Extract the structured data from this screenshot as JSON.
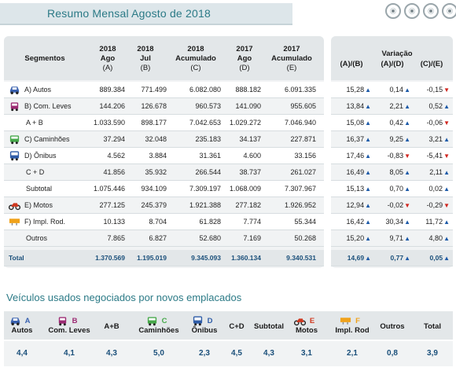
{
  "header": {
    "title": "Resumo Mensal Agosto de 2018"
  },
  "columns": {
    "segmentos": "Segmentos",
    "c1": [
      "2018",
      "Ago",
      "(A)"
    ],
    "c2": [
      "2018",
      "Jul",
      "(B)"
    ],
    "c3": [
      "2018",
      "Acumulado",
      "(C)"
    ],
    "c4": [
      "2017",
      "Ago",
      "(D)"
    ],
    "c5": [
      "2017",
      "Acumulado",
      "(E)"
    ],
    "variacao": "Variação",
    "v1": "(A)/(B)",
    "v2": "(A)/(D)",
    "v3": "(C)/(E)"
  },
  "rows": [
    {
      "label": "A) Autos",
      "icon": "car-icon",
      "a": "889.384",
      "b": "771.499",
      "c": "6.082.080",
      "d": "888.182",
      "e": "6.091.335",
      "ab": "15,28",
      "ab_dir": "up",
      "ad": "0,14",
      "ad_dir": "up",
      "ce": "-0,15",
      "ce_dir": "down"
    },
    {
      "label": "B) Com. Leves",
      "icon": "van-icon",
      "a": "144.206",
      "b": "126.678",
      "c": "960.573",
      "d": "141.090",
      "e": "955.605",
      "ab": "13,84",
      "ab_dir": "up",
      "ad": "2,21",
      "ad_dir": "up",
      "ce": "0,52",
      "ce_dir": "up"
    },
    {
      "label": "A + B",
      "icon": "",
      "a": "1.033.590",
      "b": "898.177",
      "c": "7.042.653",
      "d": "1.029.272",
      "e": "7.046.940",
      "ab": "15,08",
      "ab_dir": "up",
      "ad": "0,42",
      "ad_dir": "up",
      "ce": "-0,06",
      "ce_dir": "down"
    },
    {
      "label": "C) Caminhões",
      "icon": "truck-icon",
      "a": "37.294",
      "b": "32.048",
      "c": "235.183",
      "d": "34.137",
      "e": "227.871",
      "ab": "16,37",
      "ab_dir": "up",
      "ad": "9,25",
      "ad_dir": "up",
      "ce": "3,21",
      "ce_dir": "up"
    },
    {
      "label": "D) Ônibus",
      "icon": "bus-icon",
      "a": "4.562",
      "b": "3.884",
      "c": "31.361",
      "d": "4.600",
      "e": "33.156",
      "ab": "17,46",
      "ab_dir": "up",
      "ad": "-0,83",
      "ad_dir": "down",
      "ce": "-5,41",
      "ce_dir": "down"
    },
    {
      "label": "C + D",
      "icon": "",
      "a": "41.856",
      "b": "35.932",
      "c": "266.544",
      "d": "38.737",
      "e": "261.027",
      "ab": "16,49",
      "ab_dir": "up",
      "ad": "8,05",
      "ad_dir": "up",
      "ce": "2,11",
      "ce_dir": "up"
    },
    {
      "label": "Subtotal",
      "icon": "",
      "a": "1.075.446",
      "b": "934.109",
      "c": "7.309.197",
      "d": "1.068.009",
      "e": "7.307.967",
      "ab": "15,13",
      "ab_dir": "up",
      "ad": "0,70",
      "ad_dir": "up",
      "ce": "0,02",
      "ce_dir": "up"
    },
    {
      "label": "E) Motos",
      "icon": "motorcycle-icon",
      "a": "277.125",
      "b": "245.379",
      "c": "1.921.388",
      "d": "277.182",
      "e": "1.926.952",
      "ab": "12,94",
      "ab_dir": "up",
      "ad": "-0,02",
      "ad_dir": "down",
      "ce": "-0,29",
      "ce_dir": "down"
    },
    {
      "label": "F) Impl. Rod.",
      "icon": "trailer-icon",
      "a": "10.133",
      "b": "8.704",
      "c": "61.828",
      "d": "7.774",
      "e": "55.344",
      "ab": "16,42",
      "ab_dir": "up",
      "ad": "30,34",
      "ad_dir": "up",
      "ce": "11,72",
      "ce_dir": "up"
    },
    {
      "label": "Outros",
      "icon": "",
      "a": "7.865",
      "b": "6.827",
      "c": "52.680",
      "d": "7.169",
      "e": "50.268",
      "ab": "15,20",
      "ab_dir": "up",
      "ad": "9,71",
      "ad_dir": "up",
      "ce": "4,80",
      "ce_dir": "up"
    }
  ],
  "total": {
    "label": "Total",
    "a": "1.370.569",
    "b": "1.195.019",
    "c": "9.345.093",
    "d": "1.360.134",
    "e": "9.340.531",
    "ab": "14,69",
    "ab_dir": "up",
    "ad": "0,77",
    "ad_dir": "up",
    "ce": "0,05",
    "ce_dir": "up"
  },
  "used": {
    "title": "Veículos usados negociados por novos emplacados",
    "headers": [
      {
        "l1": "A",
        "l2": "Autos",
        "icon": "car-icon"
      },
      {
        "l1": "B",
        "l2": "Com. Leves",
        "icon": "van-icon"
      },
      {
        "l1": "A+B",
        "l2": "",
        "icon": ""
      },
      {
        "l1": "C",
        "l2": "Caminhões",
        "icon": "truck-icon"
      },
      {
        "l1": "D",
        "l2": "Ônibus",
        "icon": "bus-icon"
      },
      {
        "l1": "C+D",
        "l2": "",
        "icon": ""
      },
      {
        "l1": "Subtotal",
        "l2": "",
        "icon": ""
      },
      {
        "l1": "E",
        "l2": "Motos",
        "icon": "motorcycle-icon"
      },
      {
        "l1": "F",
        "l2": "Impl. Rod",
        "icon": "trailer-icon"
      },
      {
        "l1": "Outros",
        "l2": "",
        "icon": ""
      },
      {
        "l1": "Total",
        "l2": "",
        "icon": ""
      }
    ],
    "values": [
      "4,4",
      "4,1",
      "4,3",
      "5,0",
      "2,3",
      "4,5",
      "4,3",
      "3,1",
      "2,1",
      "0,8",
      "3,9"
    ]
  },
  "colors": {
    "title": "#2b7a86",
    "up": "#1d5aa8",
    "down": "#d0261f",
    "car": "#3a62b0",
    "van": "#9c2b73",
    "truck": "#46a84a",
    "bus": "#2f5da8",
    "moto": "#d0381f",
    "trailer": "#f0a21a"
  }
}
